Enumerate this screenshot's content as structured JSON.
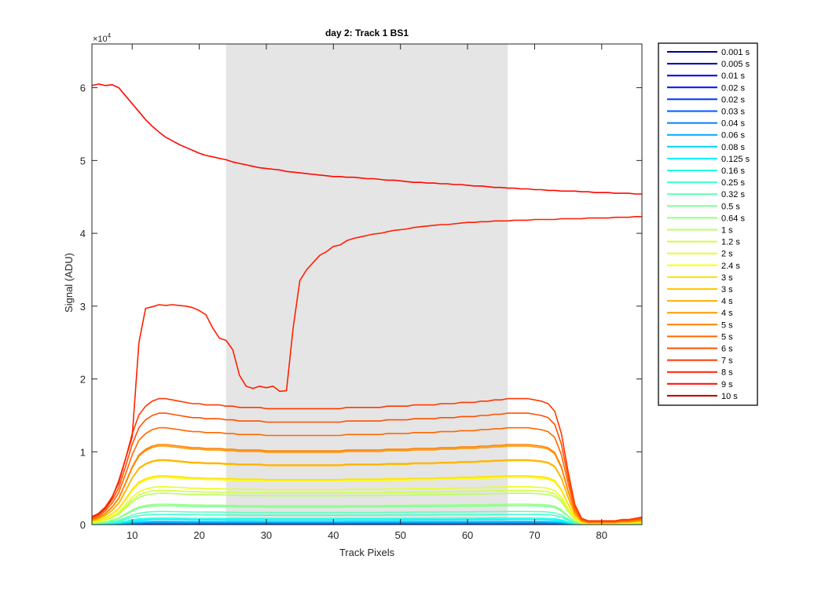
{
  "chart_data": {
    "type": "line",
    "title": "day 2: Track 1  BS1",
    "xlabel": "Track Pixels",
    "ylabel": "Signal (ADU)",
    "y_exponent_label": "×10^4",
    "y_exponent_base": "×10",
    "y_exponent_power": "4",
    "xlim": [
      4,
      86
    ],
    "ylim": [
      0,
      66000
    ],
    "xticks": [
      10,
      20,
      30,
      40,
      50,
      60,
      70,
      80
    ],
    "yticks": [
      0,
      10000,
      20000,
      30000,
      40000,
      50000,
      60000
    ],
    "ytick_labels": [
      "0",
      "1",
      "2",
      "3",
      "4",
      "5",
      "6"
    ],
    "shaded_region": {
      "x": [
        24,
        66
      ],
      "color": "#e5e5e5"
    },
    "grid": false,
    "legend_position": "outside-right",
    "x": [
      4,
      5,
      6,
      7,
      8,
      9,
      10,
      11,
      12,
      13,
      14,
      15,
      16,
      17,
      18,
      19,
      20,
      21,
      22,
      23,
      24,
      25,
      26,
      27,
      28,
      29,
      30,
      31,
      32,
      33,
      34,
      35,
      36,
      37,
      38,
      39,
      40,
      41,
      42,
      43,
      44,
      45,
      46,
      47,
      48,
      49,
      50,
      51,
      52,
      53,
      54,
      55,
      56,
      57,
      58,
      59,
      60,
      61,
      62,
      63,
      64,
      65,
      66,
      67,
      68,
      69,
      70,
      71,
      72,
      73,
      74,
      75,
      76,
      77,
      78,
      79,
      80,
      81,
      82,
      83,
      84,
      85,
      86
    ],
    "series": [
      {
        "name": "0.001 s",
        "color": "#00008f",
        "scale": 10
      },
      {
        "name": "0.005 s",
        "color": "#0000b8",
        "scale": 30
      },
      {
        "name": "0.01 s",
        "color": "#0000e0",
        "scale": 60
      },
      {
        "name": "0.02 s",
        "color": "#000aff",
        "scale": 110
      },
      {
        "name": "0.02 s",
        "color": "#0030ff",
        "scale": 120
      },
      {
        "name": "0.03 s",
        "color": "#0058ff",
        "scale": 170
      },
      {
        "name": "0.04 s",
        "color": "#0080ff",
        "scale": 230
      },
      {
        "name": "0.06 s",
        "color": "#00a8ff",
        "scale": 340
      },
      {
        "name": "0.08 s",
        "color": "#00d0ff",
        "scale": 450
      },
      {
        "name": "0.125 s",
        "color": "#00f4ff",
        "scale": 700
      },
      {
        "name": "0.16 s",
        "color": "#20ffe8",
        "scale": 900
      },
      {
        "name": "0.25 s",
        "color": "#40ffd0",
        "scale": 1400
      },
      {
        "name": "0.32 s",
        "color": "#60ffb8",
        "scale": 1800
      },
      {
        "name": "0.5 s",
        "color": "#80ff98",
        "scale": 2600
      },
      {
        "name": "0.64 s",
        "color": "#98ff80",
        "scale": 2800
      },
      {
        "name": "1 s",
        "color": "#b8ff60",
        "scale": 4300
      },
      {
        "name": "1.2 s",
        "color": "#d0ff40",
        "scale": 4700
      },
      {
        "name": "2 s",
        "color": "#e8ff20",
        "scale": 5200
      },
      {
        "name": "2.4 s",
        "color": "#ffff00",
        "scale": 6500
      },
      {
        "name": "3 s",
        "color": "#ffe000",
        "scale": 6700
      },
      {
        "name": "3 s",
        "color": "#ffc800",
        "scale": 8800
      },
      {
        "name": "4 s",
        "color": "#ffb000",
        "scale": 8900
      },
      {
        "name": "4 s",
        "color": "#ff9800",
        "scale": 10800
      },
      {
        "name": "5 s",
        "color": "#ff8000",
        "scale": 11000
      },
      {
        "name": "5 s",
        "color": "#ff6800",
        "scale": 13300
      },
      {
        "name": "6 s",
        "color": "#ff5000",
        "scale": 15300
      },
      {
        "name": "7 s",
        "color": "#ff3800",
        "scale": 17300
      },
      {
        "name": "8 s",
        "color": "#ff2000",
        "scale": 0,
        "values": [
          1100,
          1500,
          2200,
          3700,
          6000,
          9000,
          12000,
          25000,
          29700,
          29900,
          30200,
          30100,
          30200,
          30100,
          30000,
          29800,
          29400,
          28800,
          27000,
          25600,
          25300,
          24000,
          20500,
          19000,
          18700,
          19000,
          18800,
          19000,
          18300,
          18400,
          27000,
          33500,
          35000,
          36000,
          37000,
          37500,
          38200,
          38400,
          39000,
          39300,
          39500,
          39700,
          39900,
          40000,
          40200,
          40400,
          40500,
          40600,
          40800,
          40900,
          41000,
          41100,
          41200,
          41200,
          41300,
          41400,
          41500,
          41500,
          41600,
          41600,
          41700,
          41700,
          41700,
          41800,
          41800,
          41800,
          41900,
          41900,
          41900,
          41900,
          42000,
          42000,
          42000,
          42000,
          42100,
          42100,
          42100,
          42100,
          42200,
          42200,
          42200,
          42300,
          42300
        ]
      },
      {
        "name": "9 s",
        "color": "#ff0800",
        "scale": 0,
        "values": [
          60300,
          60500,
          60300,
          60400,
          60000,
          58900,
          57800,
          56700,
          55600,
          54700,
          53900,
          53200,
          52700,
          52200,
          51800,
          51400,
          51000,
          50700,
          50500,
          50300,
          50100,
          49800,
          49600,
          49400,
          49200,
          49000,
          48900,
          48800,
          48700,
          48500,
          48400,
          48300,
          48200,
          48100,
          48000,
          47900,
          47800,
          47800,
          47700,
          47700,
          47600,
          47500,
          47500,
          47400,
          47300,
          47300,
          47200,
          47100,
          47000,
          47000,
          46900,
          46900,
          46800,
          46800,
          46700,
          46700,
          46600,
          46500,
          46500,
          46400,
          46300,
          46300,
          46200,
          46200,
          46100,
          46100,
          46000,
          46000,
          45900,
          45900,
          45800,
          45800,
          45800,
          45700,
          45700,
          45600,
          45600,
          45600,
          45500,
          45500,
          45500,
          45400,
          45400
        ]
      },
      {
        "name": "10 s",
        "color": "#b80000",
        "scale": 0,
        "hidden_line": true
      }
    ],
    "profile": [
      0.06,
      0.09,
      0.14,
      0.22,
      0.33,
      0.52,
      0.72,
      0.87,
      0.94,
      0.98,
      1.0,
      1.0,
      0.99,
      0.98,
      0.97,
      0.96,
      0.96,
      0.95,
      0.95,
      0.95,
      0.94,
      0.94,
      0.93,
      0.93,
      0.93,
      0.93,
      0.92,
      0.92,
      0.92,
      0.92,
      0.92,
      0.92,
      0.92,
      0.92,
      0.92,
      0.92,
      0.92,
      0.92,
      0.93,
      0.93,
      0.93,
      0.93,
      0.93,
      0.93,
      0.94,
      0.94,
      0.94,
      0.94,
      0.95,
      0.95,
      0.95,
      0.95,
      0.96,
      0.96,
      0.96,
      0.97,
      0.97,
      0.97,
      0.98,
      0.98,
      0.99,
      0.99,
      1.0,
      1.0,
      1.0,
      1.0,
      0.99,
      0.98,
      0.96,
      0.9,
      0.72,
      0.42,
      0.16,
      0.05,
      0.03,
      0.03,
      0.03,
      0.03,
      0.03,
      0.04,
      0.04,
      0.05,
      0.06
    ]
  }
}
